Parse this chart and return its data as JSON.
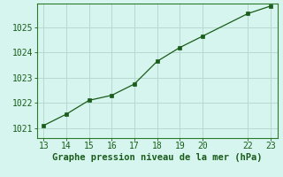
{
  "x": [
    13,
    14,
    15,
    16,
    17,
    18,
    19,
    20,
    22,
    23
  ],
  "y": [
    1021.1,
    1021.55,
    1022.1,
    1022.3,
    1022.75,
    1023.65,
    1024.2,
    1024.65,
    1025.55,
    1025.85
  ],
  "xlim": [
    12.7,
    23.3
  ],
  "ylim": [
    1020.6,
    1025.95
  ],
  "xticks": [
    13,
    14,
    15,
    16,
    17,
    18,
    19,
    20,
    22,
    23
  ],
  "yticks": [
    1021,
    1022,
    1023,
    1024,
    1025
  ],
  "xlabel": "Graphe pression niveau de la mer (hPa)",
  "line_color": "#1a5c1a",
  "marker_color": "#1a5c1a",
  "bg_color": "#d6f5ef",
  "grid_color": "#b8d9d0",
  "axis_color": "#2a7a2a",
  "tick_color": "#1a5c1a",
  "label_color": "#1a5c1a",
  "label_fontsize": 7.5,
  "tick_fontsize": 7
}
